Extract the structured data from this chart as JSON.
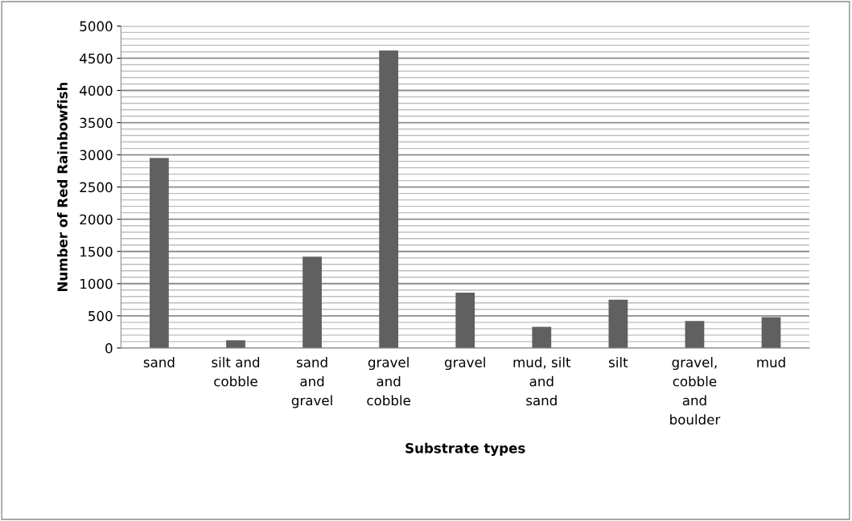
{
  "chart_data": {
    "type": "bar",
    "xlabel": "Substrate types",
    "ylabel": "Number of Red Rainbowfish",
    "categories": [
      "sand",
      "silt and\ncobble",
      "sand\nand\ngravel",
      "gravel\nand\ncobble",
      "gravel",
      "mud, silt\nand\nsand",
      "silt",
      "gravel,\ncobble\nand\nboulder",
      "mud"
    ],
    "values": [
      2950,
      120,
      1420,
      4620,
      860,
      330,
      750,
      420,
      480
    ],
    "color": "#606060",
    "ylim": [
      0,
      5000
    ],
    "yticks": [
      0,
      500,
      1000,
      1500,
      2000,
      2500,
      3000,
      3500,
      4000,
      4500,
      5000
    ],
    "grid": "y"
  }
}
